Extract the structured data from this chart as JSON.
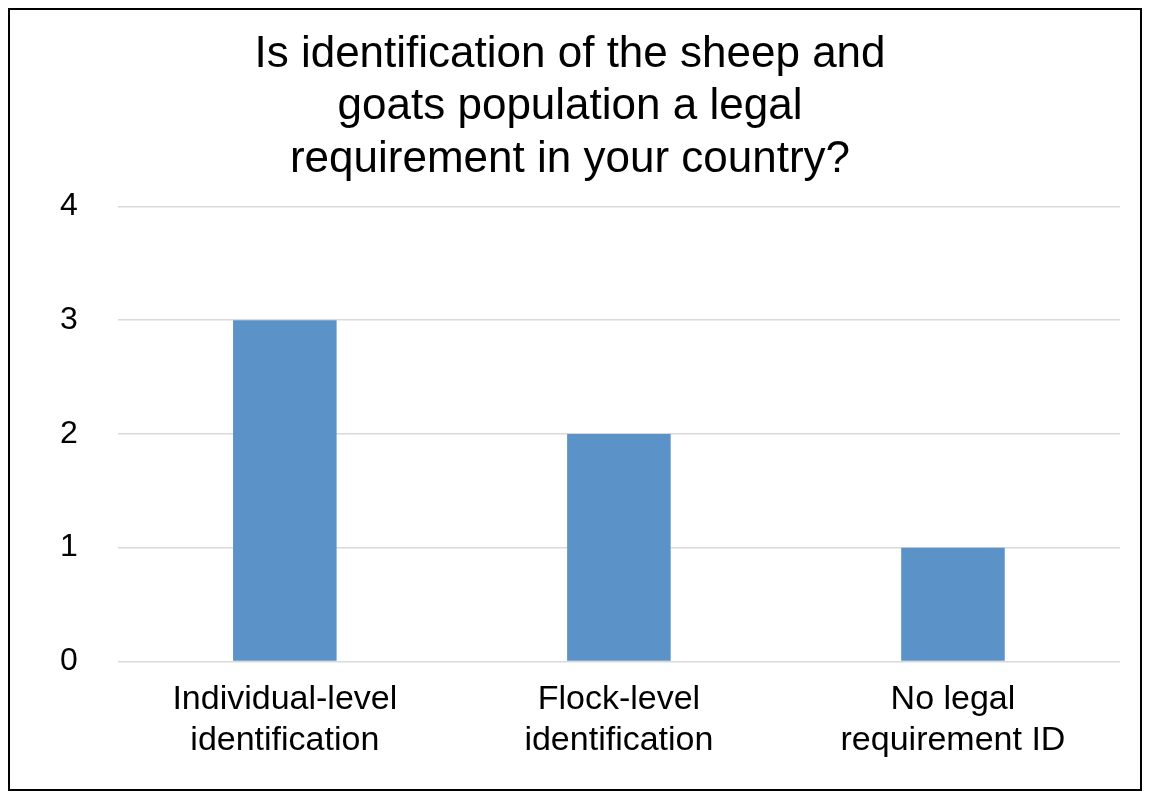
{
  "chart_data": {
    "type": "bar",
    "title": "Is identification of the sheep and goats population a legal requirement in your country?",
    "categories": [
      "Individual-level identification",
      "Flock-level identification",
      "No legal requirement ID"
    ],
    "values": [
      3,
      2,
      1
    ],
    "color": "#5b93c9",
    "ylim": [
      0,
      4
    ],
    "yticks": [
      0,
      1,
      2,
      3,
      4
    ],
    "grid": "y",
    "legend": false
  }
}
